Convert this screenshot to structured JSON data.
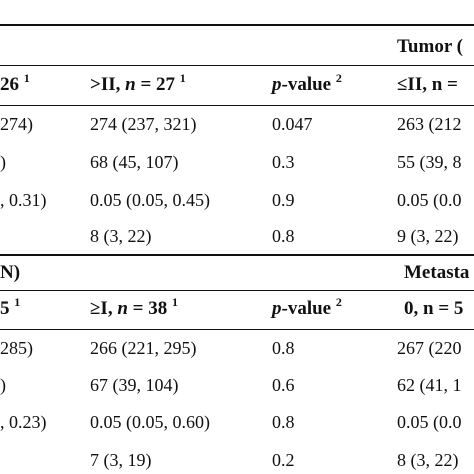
{
  "section1": {
    "group_title": "Tumor (",
    "header": [
      "26",
      ">II, n = 27",
      "p-value",
      "≤II, n ="
    ],
    "header_sup": [
      "1",
      "1",
      "2",
      ""
    ],
    "rows": [
      [
        "274)",
        "274 (237, 321)",
        "0.047",
        "263 (212"
      ],
      [
        ")",
        "68 (45, 107)",
        "0.3",
        "55 (39, 8"
      ],
      [
        ", 0.31)",
        "0.05 (0.05, 0.45)",
        "0.9",
        "0.05 (0.0"
      ],
      [
        "",
        "8 (3, 22)",
        "0.8",
        "9 (3, 22)"
      ]
    ]
  },
  "section2": {
    "left_title": "N)",
    "group_title": "Metasta",
    "header": [
      "5",
      "≥I, n = 38",
      "p-value",
      "0, n = 5"
    ],
    "header_sup": [
      "1",
      "1",
      "2",
      ""
    ],
    "rows": [
      [
        "285)",
        "266 (221, 295)",
        "0.8",
        "267 (220"
      ],
      [
        ")",
        "67 (39, 104)",
        "0.6",
        "62 (41, 1"
      ],
      [
        ", 0.23)",
        "0.05 (0.05, 0.60)",
        "0.8",
        "0.05 (0.0"
      ],
      [
        "",
        "7 (3, 19)",
        "0.2",
        "8 (3, 22)"
      ]
    ]
  }
}
